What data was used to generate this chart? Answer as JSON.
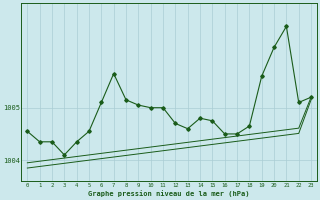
{
  "title": "Graphe pression niveau de la mer (hPa)",
  "bg_color": "#cce8ec",
  "grid_color": "#aacdd4",
  "line_color": "#1a5c1a",
  "xlim": [
    -0.5,
    23.5
  ],
  "ylim": [
    1003.6,
    1007.0
  ],
  "yticks": [
    1004,
    1005
  ],
  "xticks": [
    0,
    1,
    2,
    3,
    4,
    5,
    6,
    7,
    8,
    9,
    10,
    11,
    12,
    13,
    14,
    15,
    16,
    17,
    18,
    19,
    20,
    21,
    22,
    23
  ],
  "series1": [
    1004.55,
    1004.35,
    1004.35,
    1004.1,
    1004.35,
    1004.55,
    1005.1,
    1005.65,
    1005.15,
    1005.05,
    1005.0,
    1005.0,
    1004.7,
    1004.6,
    1004.8,
    1004.75,
    1004.5,
    1004.5,
    1004.65,
    1005.6,
    1006.15,
    1006.55,
    1005.1,
    1005.2
  ],
  "series2": [
    1003.85,
    1003.88,
    1003.91,
    1003.94,
    1003.97,
    1004.0,
    1004.03,
    1004.06,
    1004.09,
    1004.12,
    1004.15,
    1004.18,
    1004.21,
    1004.24,
    1004.27,
    1004.3,
    1004.33,
    1004.36,
    1004.39,
    1004.42,
    1004.45,
    1004.48,
    1004.51,
    1005.15
  ],
  "series3": [
    1003.95,
    1003.98,
    1004.01,
    1004.04,
    1004.07,
    1004.1,
    1004.13,
    1004.16,
    1004.19,
    1004.22,
    1004.25,
    1004.28,
    1004.31,
    1004.34,
    1004.37,
    1004.4,
    1004.43,
    1004.46,
    1004.49,
    1004.52,
    1004.55,
    1004.58,
    1004.61,
    1005.2
  ]
}
